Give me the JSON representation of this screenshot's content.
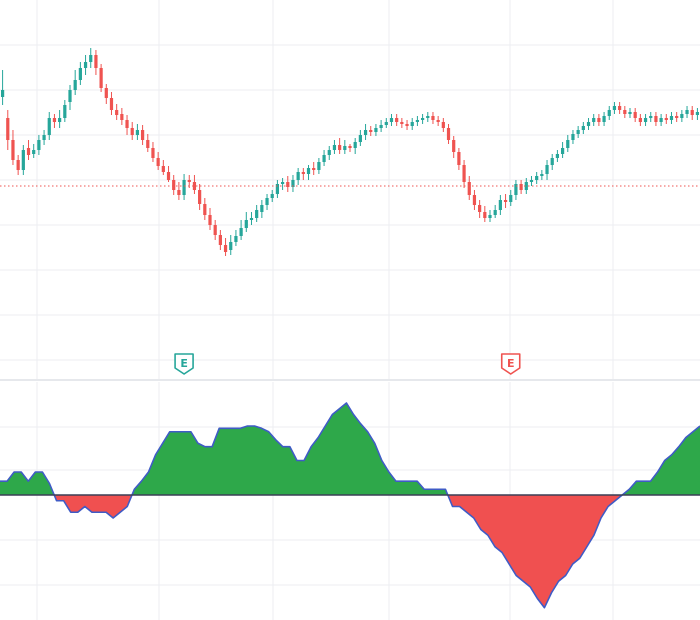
{
  "theme": {
    "background": "#ffffff",
    "grid": "#eceef2",
    "up": "#26a69a",
    "down": "#ef5350",
    "area_up": "#2ea84a",
    "area_down": "#f05050",
    "area_line": "#3f5bc6",
    "price_line": "#ef5350",
    "divider": "#e6e8ec"
  },
  "chart_data": [
    {
      "type": "candlestick",
      "title": "",
      "xlabel": "",
      "ylabel": "",
      "grid": true,
      "ylim": [
        0,
        380
      ],
      "current_price": 194,
      "candles": [
        [
          283,
          290,
          275,
          310
        ],
        [
          262,
          240,
          230,
          270
        ],
        [
          240,
          220,
          215,
          250
        ],
        [
          220,
          210,
          205,
          225
        ],
        [
          210,
          230,
          205,
          235
        ],
        [
          232,
          225,
          220,
          240
        ],
        [
          226,
          230,
          222,
          236
        ],
        [
          230,
          240,
          225,
          245
        ],
        [
          240,
          245,
          235,
          250
        ],
        [
          245,
          262,
          240,
          268
        ],
        [
          262,
          258,
          252,
          266
        ],
        [
          258,
          262,
          252,
          270
        ],
        [
          262,
          275,
          258,
          280
        ],
        [
          278,
          290,
          270,
          295
        ],
        [
          290,
          300,
          285,
          310
        ],
        [
          300,
          312,
          295,
          318
        ],
        [
          312,
          318,
          305,
          325
        ],
        [
          318,
          325,
          312,
          332
        ],
        [
          325,
          312,
          305,
          330
        ],
        [
          312,
          292,
          288,
          316
        ],
        [
          292,
          282,
          276,
          296
        ],
        [
          282,
          270,
          265,
          288
        ],
        [
          270,
          265,
          260,
          276
        ],
        [
          266,
          260,
          255,
          272
        ],
        [
          260,
          252,
          245,
          265
        ],
        [
          252,
          245,
          240,
          258
        ],
        [
          245,
          250,
          240,
          256
        ],
        [
          250,
          240,
          235,
          255
        ],
        [
          240,
          232,
          228,
          246
        ],
        [
          232,
          222,
          218,
          238
        ],
        [
          222,
          214,
          210,
          228
        ],
        [
          214,
          208,
          205,
          220
        ],
        [
          208,
          200,
          198,
          214
        ],
        [
          200,
          190,
          185,
          205
        ],
        [
          190,
          185,
          180,
          198
        ],
        [
          185,
          200,
          180,
          206
        ],
        [
          200,
          198,
          192,
          205
        ],
        [
          198,
          190,
          186,
          205
        ],
        [
          190,
          176,
          170,
          196
        ],
        [
          176,
          165,
          160,
          182
        ],
        [
          165,
          155,
          150,
          172
        ],
        [
          155,
          145,
          140,
          160
        ],
        [
          145,
          135,
          130,
          150
        ],
        [
          135,
          128,
          124,
          142
        ],
        [
          130,
          138,
          125,
          145
        ],
        [
          138,
          144,
          134,
          150
        ],
        [
          144,
          152,
          140,
          160
        ],
        [
          152,
          160,
          148,
          168
        ],
        [
          160,
          162,
          155,
          168
        ],
        [
          162,
          170,
          158,
          175
        ],
        [
          168,
          175,
          162,
          180
        ],
        [
          175,
          182,
          170,
          186
        ],
        [
          182,
          186,
          178,
          190
        ],
        [
          186,
          196,
          182,
          200
        ],
        [
          196,
          198,
          190,
          202
        ],
        [
          198,
          193,
          188,
          204
        ],
        [
          193,
          200,
          188,
          205
        ],
        [
          200,
          208,
          195,
          212
        ],
        [
          208,
          206,
          200,
          212
        ],
        [
          206,
          212,
          200,
          215
        ],
        [
          212,
          210,
          205,
          218
        ],
        [
          210,
          218,
          206,
          222
        ],
        [
          218,
          225,
          214,
          230
        ],
        [
          225,
          230,
          220,
          234
        ],
        [
          230,
          235,
          226,
          240
        ],
        [
          235,
          230,
          226,
          242
        ],
        [
          230,
          234,
          226,
          240
        ],
        [
          234,
          232,
          228,
          236
        ],
        [
          232,
          238,
          226,
          242
        ],
        [
          238,
          245,
          234,
          250
        ],
        [
          245,
          250,
          240,
          256
        ],
        [
          250,
          248,
          244,
          254
        ],
        [
          248,
          252,
          244,
          256
        ],
        [
          252,
          255,
          248,
          260
        ],
        [
          255,
          258,
          252,
          262
        ],
        [
          258,
          262,
          254,
          266
        ],
        [
          262,
          258,
          254,
          266
        ],
        [
          258,
          256,
          252,
          262
        ],
        [
          256,
          254,
          250,
          260
        ],
        [
          254,
          258,
          250,
          262
        ],
        [
          258,
          260,
          254,
          264
        ],
        [
          260,
          262,
          256,
          266
        ],
        [
          262,
          264,
          258,
          268
        ],
        [
          264,
          260,
          256,
          268
        ],
        [
          260,
          258,
          254,
          264
        ],
        [
          258,
          252,
          248,
          262
        ],
        [
          252,
          240,
          236,
          256
        ],
        [
          240,
          228,
          222,
          244
        ],
        [
          228,
          215,
          210,
          232
        ],
        [
          215,
          198,
          192,
          220
        ],
        [
          198,
          185,
          180,
          204
        ],
        [
          185,
          175,
          170,
          190
        ],
        [
          175,
          168,
          162,
          180
        ],
        [
          168,
          162,
          158,
          174
        ],
        [
          162,
          165,
          158,
          170
        ],
        [
          165,
          170,
          162,
          175
        ],
        [
          170,
          180,
          165,
          185
        ],
        [
          180,
          178,
          172,
          186
        ],
        [
          178,
          185,
          174,
          190
        ],
        [
          185,
          196,
          180,
          200
        ],
        [
          196,
          190,
          186,
          200
        ],
        [
          190,
          198,
          186,
          202
        ],
        [
          198,
          200,
          194,
          204
        ],
        [
          200,
          204,
          196,
          208
        ],
        [
          204,
          206,
          200,
          210
        ],
        [
          206,
          215,
          200,
          220
        ],
        [
          215,
          222,
          210,
          226
        ],
        [
          222,
          226,
          218,
          230
        ],
        [
          226,
          232,
          222,
          238
        ],
        [
          232,
          240,
          228,
          245
        ],
        [
          240,
          246,
          236,
          250
        ],
        [
          246,
          250,
          242,
          254
        ],
        [
          250,
          254,
          246,
          258
        ],
        [
          254,
          258,
          250,
          262
        ],
        [
          258,
          262,
          254,
          266
        ],
        [
          262,
          258,
          254,
          266
        ],
        [
          258,
          264,
          254,
          268
        ],
        [
          264,
          270,
          260,
          274
        ],
        [
          270,
          274,
          266,
          278
        ],
        [
          274,
          270,
          266,
          278
        ],
        [
          270,
          266,
          262,
          274
        ],
        [
          266,
          268,
          262,
          272
        ],
        [
          268,
          262,
          258,
          272
        ],
        [
          262,
          258,
          254,
          266
        ],
        [
          258,
          262,
          254,
          266
        ],
        [
          262,
          264,
          258,
          268
        ],
        [
          264,
          258,
          254,
          268
        ],
        [
          258,
          262,
          254,
          266
        ],
        [
          262,
          260,
          256,
          266
        ],
        [
          260,
          264,
          256,
          268
        ],
        [
          264,
          262,
          258,
          268
        ],
        [
          262,
          266,
          258,
          270
        ],
        [
          266,
          270,
          262,
          274
        ],
        [
          270,
          265,
          260,
          274
        ],
        [
          265,
          268,
          260,
          272
        ]
      ]
    },
    {
      "type": "area",
      "title": "",
      "xlabel": "",
      "ylabel": "",
      "grid": true,
      "ylim": [
        -100,
        100
      ],
      "baseline": 0,
      "values": [
        12,
        12,
        20,
        20,
        12,
        20,
        20,
        10,
        -5,
        -5,
        -15,
        -15,
        -10,
        -15,
        -15,
        -15,
        -20,
        -15,
        -10,
        5,
        12,
        20,
        35,
        45,
        55,
        55,
        55,
        55,
        45,
        42,
        42,
        58,
        58,
        58,
        58,
        60,
        60,
        58,
        55,
        48,
        42,
        42,
        30,
        30,
        42,
        50,
        60,
        70,
        75,
        80,
        70,
        62,
        55,
        45,
        30,
        20,
        12,
        12,
        12,
        12,
        5,
        5,
        5,
        5,
        -10,
        -10,
        -15,
        -20,
        -30,
        -35,
        -45,
        -50,
        -60,
        -70,
        -75,
        -80,
        -90,
        -98,
        -85,
        -75,
        -70,
        -60,
        -55,
        -45,
        -35,
        -20,
        -10,
        -5,
        0,
        5,
        12,
        12,
        12,
        20,
        30,
        35,
        42,
        50,
        55,
        60
      ]
    },
    {
      "type": "annotations",
      "markers": [
        {
          "label": "E",
          "x": 35,
          "color": "#26a69a"
        },
        {
          "label": "E",
          "x": 98,
          "color": "#ef5350"
        }
      ]
    }
  ]
}
